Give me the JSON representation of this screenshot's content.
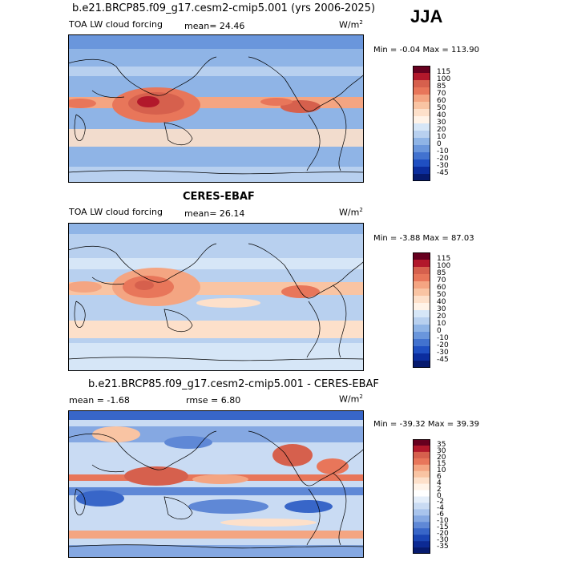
{
  "season": "JJA",
  "panels": [
    {
      "title": "b.e21.BRCP85.f09_g17.cesm2-cmip5.001 (yrs 2006-2025)",
      "variable": "TOA LW cloud forcing",
      "stat1": "mean=  24.46",
      "stat2": "",
      "units": "W/m",
      "units_exp": "2",
      "minmax": "Min =  -0.04 Max = 113.90",
      "levels": [
        "115",
        "100",
        "85",
        "70",
        "60",
        "50",
        "40",
        "30",
        "20",
        "10",
        "0",
        "-10",
        "-20",
        "-30",
        "-45"
      ],
      "colors": [
        "#67001f",
        "#b2182b",
        "#d6604d",
        "#e8765a",
        "#f4a582",
        "#f9c4a3",
        "#fde0ca",
        "#fff3e8",
        "#d6e6f7",
        "#b8d0ef",
        "#8fb4e6",
        "#6a96dc",
        "#4272cf",
        "#1f4fc2",
        "#0b2d9e",
        "#061a6e"
      ]
    },
    {
      "title": "CERES-EBAF",
      "variable": "TOA LW cloud forcing",
      "stat1": "mean=  26.14",
      "stat2": "",
      "units": "W/m",
      "units_exp": "2",
      "minmax": "Min =  -3.88 Max =  87.03",
      "levels": [
        "115",
        "100",
        "85",
        "70",
        "60",
        "50",
        "40",
        "30",
        "20",
        "10",
        "0",
        "-10",
        "-20",
        "-30",
        "-45"
      ],
      "colors": [
        "#67001f",
        "#b2182b",
        "#d6604d",
        "#e8765a",
        "#f4a582",
        "#f9c4a3",
        "#fde0ca",
        "#fff3e8",
        "#d6e6f7",
        "#b8d0ef",
        "#8fb4e6",
        "#6a96dc",
        "#4272cf",
        "#1f4fc2",
        "#0b2d9e",
        "#061a6e"
      ]
    },
    {
      "title": "b.e21.BRCP85.f09_g17.cesm2-cmip5.001 - CERES-EBAF",
      "variable": "",
      "stat1": "mean =  -1.68",
      "stat2": "rmse =   6.80",
      "units": "W/m",
      "units_exp": "2",
      "minmax": "Min = -39.32 Max =  39.39",
      "levels": [
        "35",
        "30",
        "20",
        "15",
        "10",
        "6",
        "4",
        "2",
        "0",
        "-2",
        "-4",
        "-6",
        "-10",
        "-15",
        "-20",
        "-30",
        "-35"
      ],
      "colors": [
        "#67001f",
        "#b2182b",
        "#d6604d",
        "#e8765a",
        "#f4a582",
        "#f9c4a3",
        "#fde0ca",
        "#fff3e8",
        "#ffffff",
        "#e4eefa",
        "#c9dbf3",
        "#a9c4ec",
        "#85a8e2",
        "#5f88d6",
        "#3866c8",
        "#1a45b4",
        "#0c2a94",
        "#061a6e"
      ]
    }
  ]
}
